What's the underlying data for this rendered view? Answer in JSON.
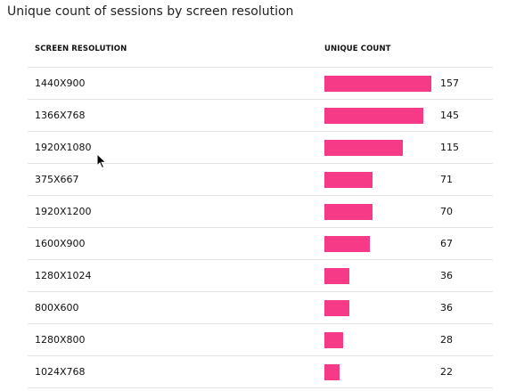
{
  "title": "Unique count of sessions by screen resolution",
  "table": {
    "headers": {
      "resolution": "SCREEN RESOLUTION",
      "count": "UNIQUE COUNT"
    },
    "bar_color": "#f73a88",
    "max_value": 157
  },
  "chart_data": {
    "type": "bar",
    "title": "Unique count of sessions by screen resolution",
    "categories": [
      "1440X900",
      "1366X768",
      "1920X1080",
      "375X667",
      "1920X1200",
      "1600X900",
      "1280X1024",
      "800X600",
      "1280X800",
      "1024X768"
    ],
    "values": [
      157,
      145,
      115,
      71,
      70,
      67,
      36,
      36,
      28,
      22
    ],
    "xlabel": "UNIQUE COUNT",
    "ylabel": "SCREEN RESOLUTION"
  },
  "rows": [
    {
      "resolution": "1440X900",
      "count": "157",
      "value": 157
    },
    {
      "resolution": "1366X768",
      "count": "145",
      "value": 145
    },
    {
      "resolution": "1920X1080",
      "count": "115",
      "value": 115
    },
    {
      "resolution": "375X667",
      "count": "71",
      "value": 71
    },
    {
      "resolution": "1920X1200",
      "count": "70",
      "value": 70
    },
    {
      "resolution": "1600X900",
      "count": "67",
      "value": 67
    },
    {
      "resolution": "1280X1024",
      "count": "36",
      "value": 36
    },
    {
      "resolution": "800X600",
      "count": "36",
      "value": 36
    },
    {
      "resolution": "1280X800",
      "count": "28",
      "value": 28
    },
    {
      "resolution": "1024X768",
      "count": "22",
      "value": 22
    }
  ],
  "cursor_icon": "mouse-pointer-icon"
}
